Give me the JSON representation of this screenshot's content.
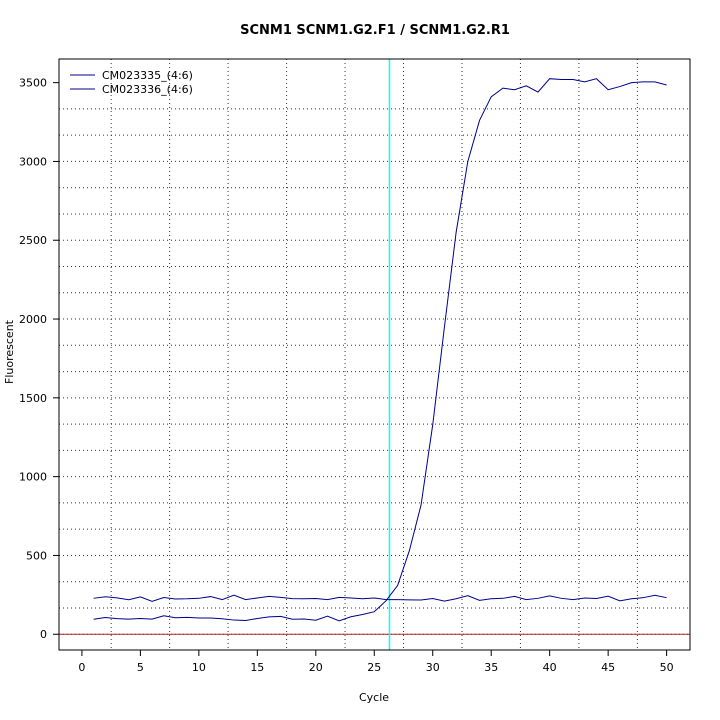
{
  "chart_data": {
    "type": "line",
    "title": "SCNM1  SCNM1.G2.F1 / SCNM1.G2.R1",
    "xlabel": "Cycle",
    "ylabel": "Fluorescent",
    "xlim": [
      -1.96,
      52.0
    ],
    "ylim": [
      -100,
      3650
    ],
    "x_ticks": [
      0,
      5,
      10,
      15,
      20,
      25,
      30,
      35,
      40,
      45,
      50
    ],
    "y_ticks": [
      0,
      500,
      1000,
      1500,
      2000,
      2500,
      3000,
      3500
    ],
    "grid": true,
    "legend": "top-left",
    "threshold_cycle": 26.3,
    "baseline_y": 0,
    "colors": {
      "series": "#00008b",
      "threshold": "#00ffff",
      "baseline": "#b22222",
      "grid": "#333333"
    },
    "x": [
      1,
      2,
      3,
      4,
      5,
      6,
      7,
      8,
      9,
      10,
      11,
      12,
      13,
      14,
      15,
      16,
      17,
      18,
      19,
      20,
      21,
      22,
      23,
      24,
      25,
      26,
      27,
      28,
      29,
      30,
      31,
      32,
      33,
      34,
      35,
      36,
      37,
      38,
      39,
      40,
      41,
      42,
      43,
      44,
      45,
      46,
      47,
      48,
      49,
      50
    ],
    "series": [
      {
        "name": "CM023335_(4:6)",
        "values": [
          95,
          106,
          99,
          96,
          100,
          96,
          117,
          105,
          107,
          103,
          103,
          98,
          90,
          87,
          100,
          110,
          113,
          95,
          97,
          89,
          115,
          85,
          111,
          125,
          143,
          212,
          310,
          530,
          820,
          1330,
          1950,
          2550,
          3000,
          3260,
          3410,
          3465,
          3455,
          3480,
          3440,
          3525,
          3520,
          3520,
          3505,
          3525,
          3455,
          3475,
          3500,
          3505,
          3505,
          3485
        ]
      },
      {
        "name": "CM023336_(4:6)",
        "values": [
          228,
          238,
          231,
          219,
          237,
          209,
          233,
          224,
          225,
          228,
          239,
          220,
          248,
          220,
          230,
          240,
          234,
          226,
          225,
          227,
          220,
          234,
          230,
          225,
          230,
          220,
          220,
          218,
          217,
          227,
          210,
          225,
          245,
          215,
          225,
          228,
          240,
          220,
          228,
          243,
          228,
          220,
          230,
          227,
          242,
          212,
          225,
          232,
          247,
          232
        ]
      }
    ]
  }
}
